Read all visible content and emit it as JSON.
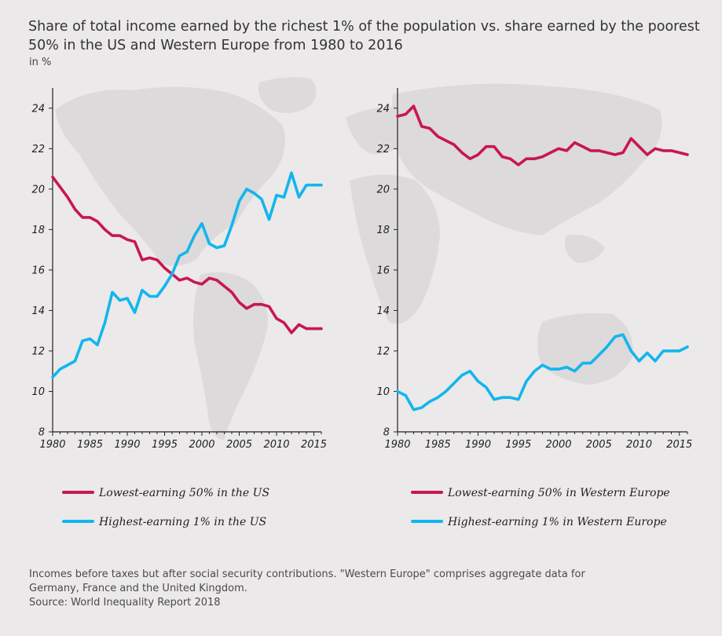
{
  "title": "Share of total income earned by the richest 1% of the population vs. share earned by the poorest 50% in the US and Western Europe from 1980 to 2016",
  "unit_label": "in %",
  "colors": {
    "low50": "#c8174f",
    "top1": "#12b6ec",
    "background": "#ebe9ea",
    "map": "#d9d7d8"
  },
  "chart_data": [
    {
      "type": "line",
      "region": "US",
      "x": [
        1980,
        1981,
        1982,
        1983,
        1984,
        1985,
        1986,
        1987,
        1988,
        1989,
        1990,
        1991,
        1992,
        1993,
        1994,
        1995,
        1996,
        1997,
        1998,
        1999,
        2000,
        2001,
        2002,
        2003,
        2004,
        2005,
        2006,
        2007,
        2008,
        2009,
        2010,
        2011,
        2012,
        2013,
        2014,
        2015,
        2016
      ],
      "series": [
        {
          "name": "Lowest-earning 50% in the US",
          "color": "#c8174f",
          "values": [
            20.6,
            20.1,
            19.6,
            19.0,
            18.6,
            18.6,
            18.4,
            18.0,
            17.7,
            17.7,
            17.5,
            17.4,
            16.5,
            16.6,
            16.5,
            16.1,
            15.8,
            15.5,
            15.6,
            15.4,
            15.3,
            15.6,
            15.5,
            15.2,
            14.9,
            14.4,
            14.1,
            14.3,
            14.3,
            14.2,
            13.6,
            13.4,
            12.9,
            13.3,
            13.1,
            13.1,
            13.1
          ]
        },
        {
          "name": "Highest-earning 1% in the US",
          "color": "#12b6ec",
          "values": [
            10.7,
            11.1,
            11.3,
            11.5,
            12.5,
            12.6,
            12.3,
            13.4,
            14.9,
            14.5,
            14.6,
            13.9,
            15.0,
            14.7,
            14.7,
            15.2,
            15.8,
            16.7,
            16.9,
            17.7,
            18.3,
            17.3,
            17.1,
            17.2,
            18.2,
            19.4,
            20.0,
            19.8,
            19.5,
            18.5,
            19.7,
            19.6,
            20.8,
            19.6,
            20.2,
            20.2,
            20.2
          ]
        }
      ],
      "xticks": [
        1980,
        1985,
        1990,
        1995,
        2000,
        2005,
        2010,
        2015
      ],
      "yticks": [
        8,
        10,
        12,
        14,
        16,
        18,
        20,
        22,
        24
      ],
      "xlim": [
        1980,
        2016
      ],
      "ylim": [
        8,
        25
      ],
      "grid": false
    },
    {
      "type": "line",
      "region": "Western Europe",
      "x": [
        1980,
        1981,
        1982,
        1983,
        1984,
        1985,
        1986,
        1987,
        1988,
        1989,
        1990,
        1991,
        1992,
        1993,
        1994,
        1995,
        1996,
        1997,
        1998,
        1999,
        2000,
        2001,
        2002,
        2003,
        2004,
        2005,
        2006,
        2007,
        2008,
        2009,
        2010,
        2011,
        2012,
        2013,
        2014,
        2015,
        2016
      ],
      "series": [
        {
          "name": "Lowest-earning 50% in Western Europe",
          "color": "#c8174f",
          "values": [
            23.6,
            23.7,
            24.1,
            23.1,
            23.0,
            22.6,
            22.4,
            22.2,
            21.8,
            21.5,
            21.7,
            22.1,
            22.1,
            21.6,
            21.5,
            21.2,
            21.5,
            21.5,
            21.6,
            21.8,
            22.0,
            21.9,
            22.3,
            22.1,
            21.9,
            21.9,
            21.8,
            21.7,
            21.8,
            22.5,
            22.1,
            21.7,
            22.0,
            21.9,
            21.9,
            21.8,
            21.7
          ]
        },
        {
          "name": "Highest-earning 1% in Western Europe",
          "color": "#12b6ec",
          "values": [
            10.0,
            9.8,
            9.1,
            9.2,
            9.5,
            9.7,
            10.0,
            10.4,
            10.8,
            11.0,
            10.5,
            10.2,
            9.6,
            9.7,
            9.7,
            9.6,
            10.5,
            11.0,
            11.3,
            11.1,
            11.1,
            11.2,
            11.0,
            11.4,
            11.4,
            11.8,
            12.2,
            12.7,
            12.8,
            12.0,
            11.5,
            11.9,
            11.5,
            12.0,
            12.0,
            12.0,
            12.2
          ]
        }
      ],
      "xticks": [
        1980,
        1985,
        1990,
        1995,
        2000,
        2005,
        2010,
        2015
      ],
      "yticks": [
        8,
        10,
        12,
        14,
        16,
        18,
        20,
        22,
        24
      ],
      "xlim": [
        1980,
        2016
      ],
      "ylim": [
        8,
        25
      ],
      "grid": false
    }
  ],
  "legend": {
    "us": [
      "Lowest-earning 50% in the US",
      "Highest-earning 1% in the US"
    ],
    "europe": [
      "Lowest-earning 50% in Western Europe",
      "Highest-earning 1% in Western Europe"
    ]
  },
  "notes": {
    "line1": "Incomes before taxes but after social security contributions. \"Western Europe\" comprises aggregate data for",
    "line2": "Germany, France and the United Kingdom.",
    "source": "Source: World Inequality Report 2018"
  }
}
